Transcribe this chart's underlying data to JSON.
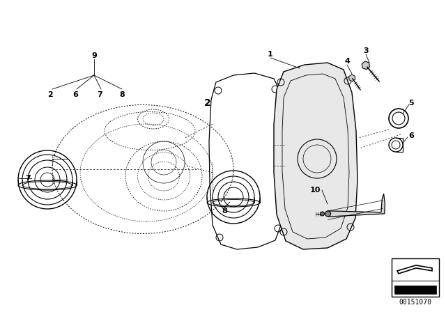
{
  "bg_color": "#ffffff",
  "line_color": "#000000",
  "part_number": "00151070"
}
